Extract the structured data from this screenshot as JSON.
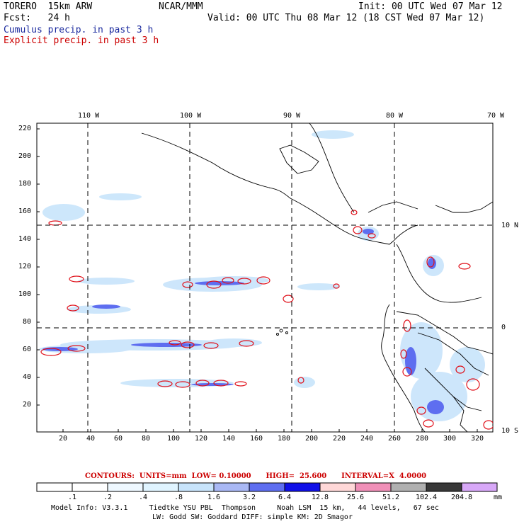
{
  "header": {
    "model": "TORERO  15km ARW",
    "center": "NCAR/MMM",
    "init": "Init: 00 UTC Wed 07 Mar 12",
    "fcst": "Fcst:   24 h",
    "valid": "Valid: 00 UTC Thu 08 Mar 12 (18 CST Wed 07 Mar 12)",
    "field1": "Cumulus precip. in past 3 h",
    "field2": "Explicit precip. in past 3 h"
  },
  "map": {
    "lon_labels": [
      "110 W",
      "100 W",
      "90 W",
      "80 W",
      "70 W"
    ],
    "lat_labels": [
      "10 N",
      "0",
      "10 S"
    ],
    "y_ticks": [
      "220",
      "200",
      "180",
      "160",
      "140",
      "120",
      "100",
      "80",
      "60",
      "40",
      "20"
    ],
    "x_ticks": [
      "20",
      "40",
      "60",
      "80",
      "100",
      "120",
      "140",
      "160",
      "180",
      "200",
      "220",
      "240",
      "260",
      "280",
      "300",
      "320"
    ]
  },
  "contours": {
    "label": "CONTOURS:  UNITS=mm  LOW= 0.10000      HIGH=  25.600      INTERVAL=X  4.0000"
  },
  "colorbar": {
    "levels": [
      ".1",
      ".2",
      ".4",
      ".8",
      "1.6",
      "3.2",
      "6.4",
      "12.8",
      "25.6",
      "51.2",
      "102.4",
      "204.8"
    ],
    "unit": "mm",
    "colors": [
      "#ffffff",
      "#ffffff",
      "#eef8ff",
      "#e0f4ff",
      "#c8e4fb",
      "#a9b8f4",
      "#5e6ef0",
      "#1010e8",
      "#ffd8d8",
      "#f090b8",
      "#b0b0b0",
      "#383838",
      "#d8a8f8"
    ]
  },
  "footer": {
    "line1": "Model Info: V3.3.1     Tiedtke YSU PBL  Thompson     Noah LSM  15 km,   44 levels,   67 sec",
    "line2": "LW: Godd SW: Goddard DIFF: simple KM: 2D Smagor"
  }
}
